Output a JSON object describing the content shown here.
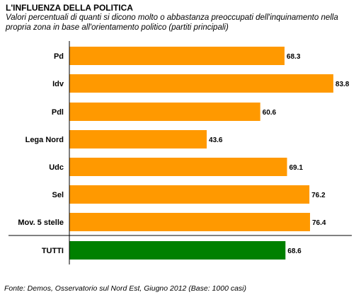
{
  "title": "L'INFLUENZA DELLA POLITICA",
  "subtitle": "Valori percentuali di quanti si dicono molto o abbastanza preoccupati dell'inquinamento nella propria zona in base all'orientamento politico (partiti principali)",
  "source": "Fonte: Demos, Osservatorio sul Nord Est, Giugno 2012 (Base: 1000 casi)",
  "colors": {
    "parties": "#ff9900",
    "total": "#008000",
    "axis": "#000000"
  },
  "chart_data": {
    "type": "bar",
    "orientation": "horizontal",
    "title": "L'INFLUENZA DELLA POLITICA",
    "xlabel": "",
    "ylabel": "",
    "xlim": [
      0,
      85
    ],
    "grid": false,
    "legend": "none",
    "categories": [
      "Pd",
      "Idv",
      "Pdl",
      "Lega Nord",
      "Udc",
      "Sel",
      "Mov. 5 stelle",
      "TUTTI"
    ],
    "values": [
      68.3,
      83.8,
      60.6,
      43.6,
      69.1,
      76.2,
      76.4,
      68.6
    ],
    "value_labels": [
      "68.3",
      "83.8",
      "60.6",
      "43.6",
      "69.1",
      "76.2",
      "76.4",
      "68.6"
    ]
  }
}
